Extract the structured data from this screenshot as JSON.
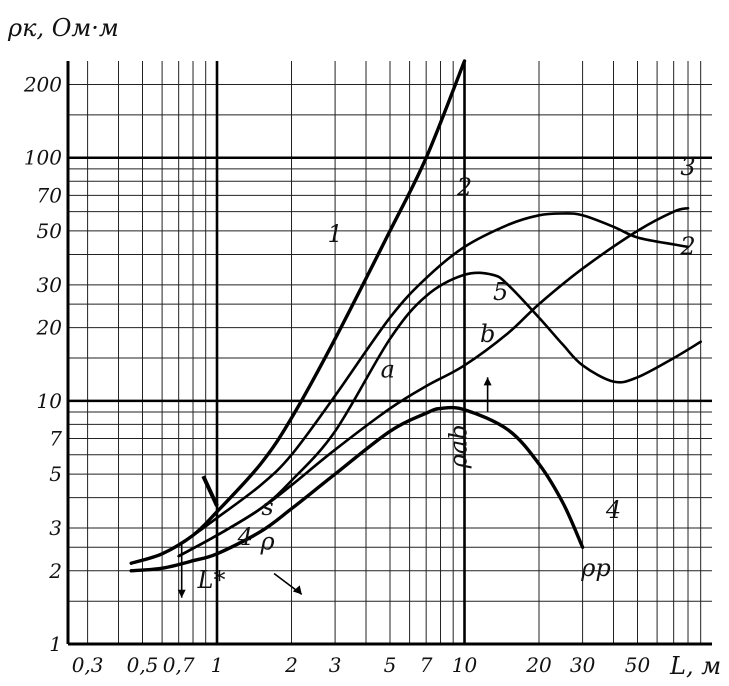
{
  "chart_data": {
    "type": "line",
    "title": "",
    "ylabel": "ρк, Ом·м",
    "xlabel": "L, м",
    "x_scale": "log",
    "y_scale": "log",
    "xlim": [
      0.25,
      100
    ],
    "ylim": [
      1,
      250
    ],
    "grid": true,
    "x_ticks": [
      {
        "value": 0.3,
        "label": "0,3"
      },
      {
        "value": 0.5,
        "label": "0,5"
      },
      {
        "value": 0.7,
        "label": "0,7"
      },
      {
        "value": 1,
        "label": "1"
      },
      {
        "value": 2,
        "label": "2"
      },
      {
        "value": 3,
        "label": "3"
      },
      {
        "value": 5,
        "label": "5"
      },
      {
        "value": 7,
        "label": "7"
      },
      {
        "value": 10,
        "label": "10"
      },
      {
        "value": 20,
        "label": "20"
      },
      {
        "value": 30,
        "label": "30"
      },
      {
        "value": 50,
        "label": "50"
      }
    ],
    "y_ticks": [
      {
        "value": 1,
        "label": "1"
      },
      {
        "value": 2,
        "label": "2"
      },
      {
        "value": 3,
        "label": "3"
      },
      {
        "value": 5,
        "label": "5"
      },
      {
        "value": 7,
        "label": "7"
      },
      {
        "value": 10,
        "label": "10"
      },
      {
        "value": 20,
        "label": "20"
      },
      {
        "value": 30,
        "label": "30"
      },
      {
        "value": 50,
        "label": "50"
      },
      {
        "value": 70,
        "label": "70"
      },
      {
        "value": 100,
        "label": "100"
      },
      {
        "value": 200,
        "label": "200"
      }
    ],
    "series": [
      {
        "name": "1",
        "points": [
          [
            0.45,
            2.15
          ],
          [
            0.6,
            2.35
          ],
          [
            0.8,
            2.8
          ],
          [
            1,
            3.5
          ],
          [
            1.5,
            5.5
          ],
          [
            2,
            8.5
          ],
          [
            3,
            18
          ],
          [
            5,
            50
          ],
          [
            7,
            100
          ],
          [
            10,
            250
          ]
        ],
        "bold": true
      },
      {
        "name": "2",
        "points": [
          [
            0.45,
            2.15
          ],
          [
            0.6,
            2.35
          ],
          [
            0.8,
            2.8
          ],
          [
            1,
            3.3
          ],
          [
            1.5,
            4.5
          ],
          [
            2,
            6
          ],
          [
            3,
            10.5
          ],
          [
            5,
            22
          ],
          [
            7,
            32
          ],
          [
            10,
            43
          ],
          [
            15,
            53
          ],
          [
            20,
            58
          ],
          [
            25,
            59
          ],
          [
            30,
            58
          ],
          [
            40,
            52
          ],
          [
            50,
            47
          ],
          [
            70,
            44
          ],
          [
            80,
            43
          ]
        ],
        "bold": false
      },
      {
        "name": "3",
        "points": [
          [
            0.7,
            2.3
          ],
          [
            1,
            2.8
          ],
          [
            1.5,
            3.6
          ],
          [
            2,
            4.5
          ],
          [
            3,
            6.3
          ],
          [
            5,
            9.3
          ],
          [
            7,
            11.5
          ],
          [
            10,
            14
          ],
          [
            15,
            19
          ],
          [
            20,
            25
          ],
          [
            30,
            35
          ],
          [
            50,
            50
          ],
          [
            70,
            60
          ],
          [
            80,
            62
          ]
        ],
        "bold": false
      },
      {
        "name": "5",
        "points": [
          [
            0.7,
            2.3
          ],
          [
            1,
            2.8
          ],
          [
            1.5,
            3.6
          ],
          [
            2,
            4.7
          ],
          [
            3,
            7.5
          ],
          [
            5,
            18
          ],
          [
            7,
            27
          ],
          [
            10,
            33
          ],
          [
            13,
            33
          ],
          [
            15,
            30
          ],
          [
            20,
            22
          ],
          [
            25,
            17
          ],
          [
            30,
            14
          ],
          [
            40,
            12
          ],
          [
            50,
            12.5
          ],
          [
            70,
            15
          ],
          [
            90,
            17.5
          ]
        ],
        "bold": false
      },
      {
        "name": "4",
        "points": [
          [
            0.45,
            2
          ],
          [
            0.6,
            2.05
          ],
          [
            0.8,
            2.2
          ],
          [
            1,
            2.35
          ],
          [
            1.5,
            2.9
          ],
          [
            2,
            3.6
          ],
          [
            3,
            5
          ],
          [
            5,
            7.5
          ],
          [
            7,
            8.9
          ],
          [
            8,
            9.3
          ],
          [
            10,
            9.2
          ],
          [
            15,
            7.6
          ],
          [
            20,
            5.5
          ],
          [
            25,
            3.8
          ],
          [
            30,
            2.5
          ]
        ],
        "bold": true
      }
    ],
    "curve_labels": [
      {
        "text": "1",
        "x": 3,
        "y": 45
      },
      {
        "text": "2",
        "x": 10,
        "y": 70
      },
      {
        "text": "2",
        "x": 80,
        "y": 40
      },
      {
        "text": "3",
        "x": 80,
        "y": 85
      },
      {
        "text": "5",
        "x": 14,
        "y": 26
      },
      {
        "text": "a",
        "x": 4.9,
        "y": 12.5
      },
      {
        "text": "b",
        "x": 12.4,
        "y": 17.5
      },
      {
        "text": "4",
        "x": 40,
        "y": 3.3
      },
      {
        "text": "s",
        "x": 1.6,
        "y": 3.4
      },
      {
        "text": "4",
        "x": 1.3,
        "y": 2.55
      },
      {
        "text": "ρ",
        "x": 1.6,
        "y": 2.45
      }
    ],
    "annotations": [
      {
        "id": "rho_ab",
        "text": "ρab",
        "x": 10,
        "y": 6.5
      },
      {
        "id": "rho_p",
        "text": "ρp",
        "x": 34,
        "y": 1.9
      },
      {
        "id": "L_star",
        "text": "L*",
        "x": 0.95,
        "y": 1.7
      }
    ]
  },
  "labels": {
    "y_axis_title": "ρк, Ом·м",
    "x_axis_title": "L, м"
  }
}
